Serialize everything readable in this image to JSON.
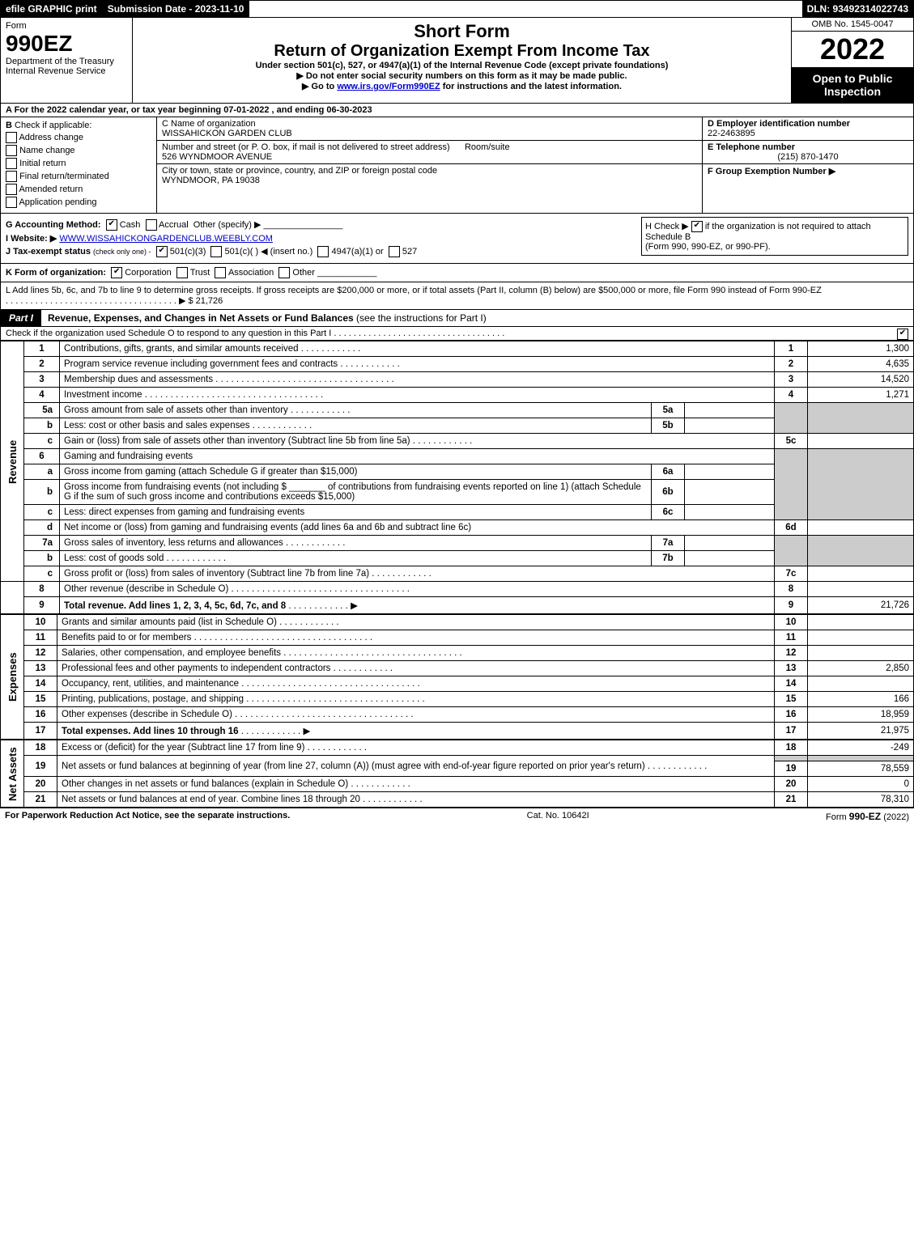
{
  "topbar": {
    "efile": "efile GRAPHIC print",
    "submission": "Submission Date - 2023-11-10",
    "dln": "DLN: 93492314022743"
  },
  "header": {
    "form_label": "Form",
    "form_number": "990EZ",
    "dept": "Department of the Treasury",
    "irs": "Internal Revenue Service",
    "short_form": "Short Form",
    "title": "Return of Organization Exempt From Income Tax",
    "subtitle": "Under section 501(c), 527, or 4947(a)(1) of the Internal Revenue Code (except private foundations)",
    "instr1": "▶ Do not enter social security numbers on this form as it may be made public.",
    "instr2_pre": "▶ Go to ",
    "instr2_link": "www.irs.gov/Form990EZ",
    "instr2_post": " for instructions and the latest information.",
    "omb": "OMB No. 1545-0047",
    "year": "2022",
    "open": "Open to Public Inspection"
  },
  "sectionA": {
    "text": "A  For the 2022 calendar year, or tax year beginning 07-01-2022 , and ending 06-30-2023"
  },
  "sectionB": {
    "label": "B",
    "check_if": "Check if applicable:",
    "addr_change": "Address change",
    "name_change": "Name change",
    "initial": "Initial return",
    "final": "Final return/terminated",
    "amended": "Amended return",
    "pending": "Application pending"
  },
  "sectionC": {
    "name_label": "C Name of organization",
    "name": "WISSAHICKON GARDEN CLUB",
    "street_label": "Number and street (or P. O. box, if mail is not delivered to street address)",
    "room_label": "Room/suite",
    "street": "526 WYNDMOOR AVENUE",
    "city_label": "City or town, state or province, country, and ZIP or foreign postal code",
    "city": "WYNDMOOR, PA  19038"
  },
  "sectionD": {
    "label": "D Employer identification number",
    "value": "22-2463895"
  },
  "sectionE": {
    "label": "E Telephone number",
    "value": "(215) 870-1470"
  },
  "sectionF": {
    "label": "F Group Exemption Number  ▶",
    "value": ""
  },
  "sectionG": {
    "label": "G Accounting Method:",
    "cash": "Cash",
    "accrual": "Accrual",
    "other": "Other (specify) ▶"
  },
  "sectionH": {
    "text1": "H  Check ▶",
    "text2": "if the organization is not required to attach Schedule B",
    "text3": "(Form 990, 990-EZ, or 990-PF)."
  },
  "sectionI": {
    "label": "I Website: ▶",
    "value": "WWW.WISSAHICKONGARDENCLUB.WEEBLY.COM"
  },
  "sectionJ": {
    "label": "J Tax-exempt status",
    "note": "(check only one) -",
    "opt1": "501(c)(3)",
    "opt2": "501(c)(  ) ◀ (insert no.)",
    "opt3": "4947(a)(1) or",
    "opt4": "527"
  },
  "sectionK": {
    "label": "K Form of organization:",
    "corp": "Corporation",
    "trust": "Trust",
    "assoc": "Association",
    "other": "Other"
  },
  "sectionL": {
    "text": "L Add lines 5b, 6c, and 7b to line 9 to determine gross receipts. If gross receipts are $200,000 or more, or if total assets (Part II, column (B) below) are $500,000 or more, file Form 990 instead of Form 990-EZ",
    "arrow": "▶ $",
    "value": "21,726"
  },
  "part1": {
    "label": "Part I",
    "title": "Revenue, Expenses, and Changes in Net Assets or Fund Balances",
    "note": "(see the instructions for Part I)",
    "check_note": "Check if the organization used Schedule O to respond to any question in this Part I"
  },
  "lines": {
    "revenue_label": "Revenue",
    "expenses_label": "Expenses",
    "netassets_label": "Net Assets",
    "l1": {
      "num": "1",
      "desc": "Contributions, gifts, grants, and similar amounts received",
      "rnum": "1",
      "val": "1,300"
    },
    "l2": {
      "num": "2",
      "desc": "Program service revenue including government fees and contracts",
      "rnum": "2",
      "val": "4,635"
    },
    "l3": {
      "num": "3",
      "desc": "Membership dues and assessments",
      "rnum": "3",
      "val": "14,520"
    },
    "l4": {
      "num": "4",
      "desc": "Investment income",
      "rnum": "4",
      "val": "1,271"
    },
    "l5a": {
      "num": "5a",
      "desc": "Gross amount from sale of assets other than inventory",
      "mid": "5a",
      "midval": ""
    },
    "l5b": {
      "num": "b",
      "desc": "Less: cost or other basis and sales expenses",
      "mid": "5b",
      "midval": ""
    },
    "l5c": {
      "num": "c",
      "desc": "Gain or (loss) from sale of assets other than inventory (Subtract line 5b from line 5a)",
      "rnum": "5c",
      "val": ""
    },
    "l6": {
      "num": "6",
      "desc": "Gaming and fundraising events"
    },
    "l6a": {
      "num": "a",
      "desc": "Gross income from gaming (attach Schedule G if greater than $15,000)",
      "mid": "6a",
      "midval": ""
    },
    "l6b": {
      "num": "b",
      "desc1": "Gross income from fundraising events (not including $",
      "desc2": "of contributions from fundraising events reported on line 1) (attach Schedule G if the sum of such gross income and contributions exceeds $15,000)",
      "mid": "6b",
      "midval": ""
    },
    "l6c": {
      "num": "c",
      "desc": "Less: direct expenses from gaming and fundraising events",
      "mid": "6c",
      "midval": ""
    },
    "l6d": {
      "num": "d",
      "desc": "Net income or (loss) from gaming and fundraising events (add lines 6a and 6b and subtract line 6c)",
      "rnum": "6d",
      "val": ""
    },
    "l7a": {
      "num": "7a",
      "desc": "Gross sales of inventory, less returns and allowances",
      "mid": "7a",
      "midval": ""
    },
    "l7b": {
      "num": "b",
      "desc": "Less: cost of goods sold",
      "mid": "7b",
      "midval": ""
    },
    "l7c": {
      "num": "c",
      "desc": "Gross profit or (loss) from sales of inventory (Subtract line 7b from line 7a)",
      "rnum": "7c",
      "val": ""
    },
    "l8": {
      "num": "8",
      "desc": "Other revenue (describe in Schedule O)",
      "rnum": "8",
      "val": ""
    },
    "l9": {
      "num": "9",
      "desc": "Total revenue. Add lines 1, 2, 3, 4, 5c, 6d, 7c, and 8",
      "rnum": "9",
      "val": "21,726"
    },
    "l10": {
      "num": "10",
      "desc": "Grants and similar amounts paid (list in Schedule O)",
      "rnum": "10",
      "val": ""
    },
    "l11": {
      "num": "11",
      "desc": "Benefits paid to or for members",
      "rnum": "11",
      "val": ""
    },
    "l12": {
      "num": "12",
      "desc": "Salaries, other compensation, and employee benefits",
      "rnum": "12",
      "val": ""
    },
    "l13": {
      "num": "13",
      "desc": "Professional fees and other payments to independent contractors",
      "rnum": "13",
      "val": "2,850"
    },
    "l14": {
      "num": "14",
      "desc": "Occupancy, rent, utilities, and maintenance",
      "rnum": "14",
      "val": ""
    },
    "l15": {
      "num": "15",
      "desc": "Printing, publications, postage, and shipping",
      "rnum": "15",
      "val": "166"
    },
    "l16": {
      "num": "16",
      "desc": "Other expenses (describe in Schedule O)",
      "rnum": "16",
      "val": "18,959"
    },
    "l17": {
      "num": "17",
      "desc": "Total expenses. Add lines 10 through 16",
      "rnum": "17",
      "val": "21,975"
    },
    "l18": {
      "num": "18",
      "desc": "Excess or (deficit) for the year (Subtract line 17 from line 9)",
      "rnum": "18",
      "val": "-249"
    },
    "l19": {
      "num": "19",
      "desc": "Net assets or fund balances at beginning of year (from line 27, column (A)) (must agree with end-of-year figure reported on prior year's return)",
      "rnum": "19",
      "val": "78,559"
    },
    "l20": {
      "num": "20",
      "desc": "Other changes in net assets or fund balances (explain in Schedule O)",
      "rnum": "20",
      "val": "0"
    },
    "l21": {
      "num": "21",
      "desc": "Net assets or fund balances at end of year. Combine lines 18 through 20",
      "rnum": "21",
      "val": "78,310"
    }
  },
  "footer": {
    "left": "For Paperwork Reduction Act Notice, see the separate instructions.",
    "cat": "Cat. No. 10642I",
    "form": "Form",
    "formnum": "990-EZ",
    "formyear": "(2022)"
  },
  "colors": {
    "black": "#000000",
    "white": "#ffffff",
    "shade": "#cccccc",
    "link": "#0000cc"
  }
}
